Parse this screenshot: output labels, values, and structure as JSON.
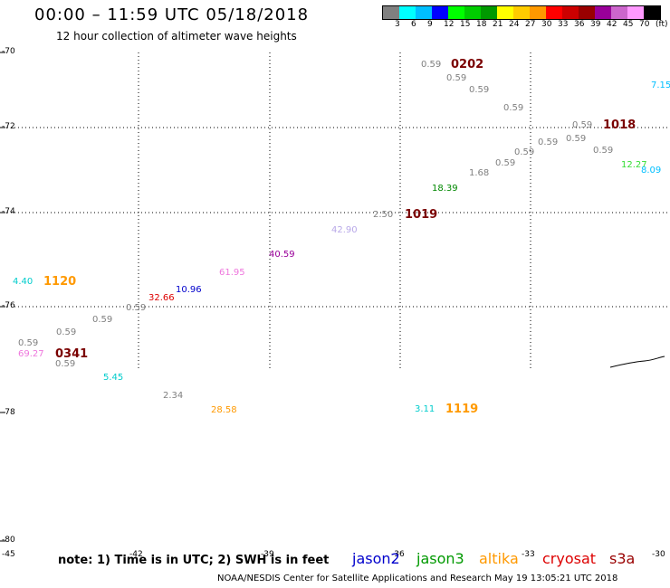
{
  "header": {
    "title": "00:00 – 11:59 UTC 05/18/2018",
    "subtitle": "12 hour collection of altimeter wave heights"
  },
  "colorbar": {
    "colors": [
      "#808080",
      "#00ffff",
      "#00bfff",
      "#0000ff",
      "#00ff00",
      "#00cc00",
      "#009900",
      "#ffff00",
      "#ffcc00",
      "#ff9900",
      "#ff0000",
      "#cc0000",
      "#990000",
      "#990099",
      "#cc66cc",
      "#ff99ff",
      "#000000"
    ],
    "labels": [
      "3",
      "6",
      "9",
      "12",
      "15",
      "18",
      "21",
      "24",
      "27",
      "30",
      "33",
      "36",
      "39",
      "42",
      "45",
      "70",
      "(ft)"
    ]
  },
  "latitude_labels": [
    "-70",
    "-72",
    "-74",
    "-76",
    "-78",
    "-80"
  ],
  "longitude_labels": [
    "-45",
    "-42",
    "-39",
    "-36",
    "-33",
    "-30"
  ],
  "observations": [
    {
      "text": "0.59",
      "color": "#808080"
    },
    {
      "text": "0202",
      "color": "#7a0000",
      "kind": "time"
    },
    {
      "text": "0.59",
      "color": "#808080"
    },
    {
      "text": "0.59",
      "color": "#808080"
    },
    {
      "text": "7.15",
      "color": "#00bfff"
    },
    {
      "text": "0.59",
      "color": "#808080"
    },
    {
      "text": "0.59",
      "color": "#808080"
    },
    {
      "text": "1018",
      "color": "#7a0000",
      "kind": "time"
    },
    {
      "text": "0.59",
      "color": "#808080"
    },
    {
      "text": "0.59",
      "color": "#808080"
    },
    {
      "text": "0.59",
      "color": "#808080"
    },
    {
      "text": "0.59",
      "color": "#808080"
    },
    {
      "text": "0.59",
      "color": "#808080"
    },
    {
      "text": "12.27",
      "color": "#33dd33"
    },
    {
      "text": "8.09",
      "color": "#00bfff"
    },
    {
      "text": "1.68",
      "color": "#808080"
    },
    {
      "text": "18.39",
      "color": "#008800"
    },
    {
      "text": "2.50",
      "color": "#808080"
    },
    {
      "text": "1019",
      "color": "#7a0000",
      "kind": "time"
    },
    {
      "text": "42.90",
      "color": "#b8a8e8"
    },
    {
      "text": "40.59",
      "color": "#990099"
    },
    {
      "text": "61.95",
      "color": "#ee77dd"
    },
    {
      "text": "10.96",
      "color": "#0000cc"
    },
    {
      "text": "32.66",
      "color": "#dd0000"
    },
    {
      "text": "0.59",
      "color": "#808080"
    },
    {
      "text": "0.59",
      "color": "#808080"
    },
    {
      "text": "0.59",
      "color": "#808080"
    },
    {
      "text": "0.59",
      "color": "#808080"
    },
    {
      "text": "69.27",
      "color": "#ee77dd"
    },
    {
      "text": "0341",
      "color": "#7a0000",
      "kind": "time"
    },
    {
      "text": "0.59",
      "color": "#808080"
    },
    {
      "text": "4.40",
      "color": "#00cccc"
    },
    {
      "text": "1120",
      "color": "#ff9900",
      "kind": "time"
    },
    {
      "text": "5.45",
      "color": "#00cccc"
    },
    {
      "text": "2.34",
      "color": "#808080"
    },
    {
      "text": "28.58",
      "color": "#ff9900"
    },
    {
      "text": "3.11",
      "color": "#00cccc"
    },
    {
      "text": "1119",
      "color": "#ff9900",
      "kind": "time"
    }
  ],
  "note": "note:  1) Time is in UTC;  2) SWH is in feet",
  "legend": [
    {
      "name": "jason2",
      "color": "#0000cc"
    },
    {
      "name": "jason3",
      "color": "#009900"
    },
    {
      "name": "altika",
      "color": "#ff9900"
    },
    {
      "name": "cryosat",
      "color": "#dd0000"
    },
    {
      "name": "s3a",
      "color": "#990000"
    }
  ],
  "footer": "NOAA/NESDIS Center for Satellite Applications and Research     May 19 13:05:21 UTC 2018"
}
